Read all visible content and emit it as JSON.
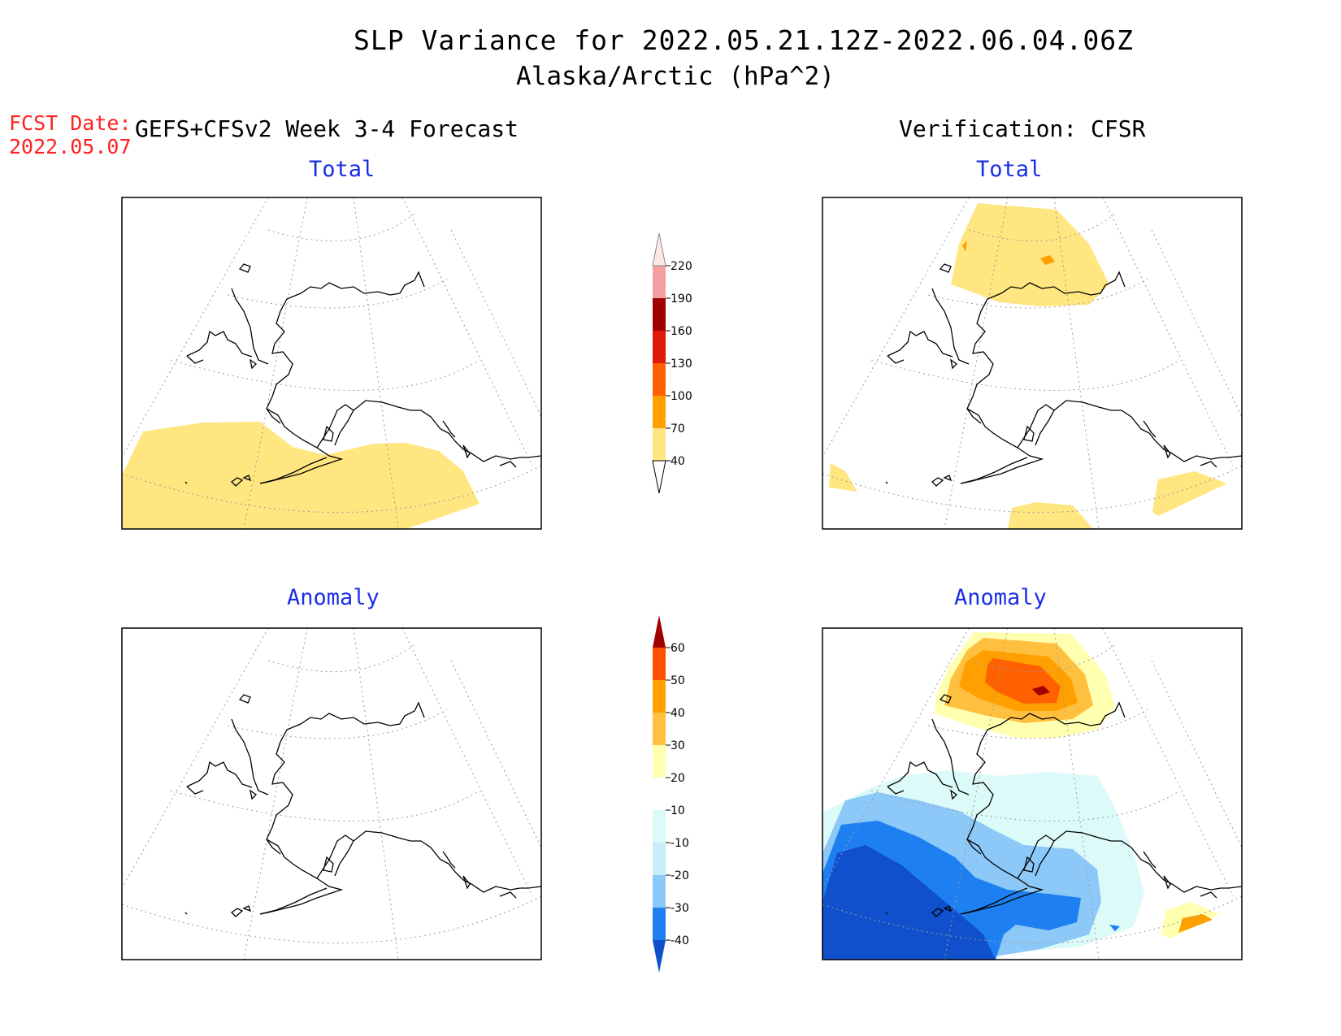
{
  "title": "SLP Variance for 2022.05.21.12Z-2022.06.04.06Z",
  "subtitle": "Alaska/Arctic (hPa^2)",
  "forecast_date_label": "FCST Date:",
  "forecast_date": "2022.05.07",
  "left_header": "GEFS+CFSv2 Week 3-4 Forecast",
  "right_header": "Verification: CFSR",
  "panels": {
    "forecast_total": "Total",
    "verification_total": "Total",
    "forecast_anomaly": "Anomaly",
    "verification_anomaly": "Anomaly"
  },
  "colorbars": {
    "total": {
      "levels": [
        "40",
        "70",
        "100",
        "130",
        "160",
        "190",
        "220"
      ],
      "colors": [
        "#ffe680",
        "#ffa000",
        "#ff6000",
        "#e01808",
        "#a00000",
        "#f4a0a0",
        "#fde8e8"
      ]
    },
    "anomaly": {
      "levels": [
        "-40",
        "-30",
        "-20",
        "-10",
        "10",
        "20",
        "30",
        "40",
        "50",
        "60"
      ],
      "colors": [
        "#1050cc",
        "#1e80f0",
        "#8cc8f8",
        "#c8ecf8",
        "#dcfaf8",
        "#ffffff",
        "#ffffb0",
        "#ffc040",
        "#ffa000",
        "#ff5000",
        "#e01808",
        "#a00000"
      ]
    }
  },
  "colors": {
    "title_red": "#ff2020",
    "subtitle_blue": "#1a2ee6",
    "total_shade": "#ffe680"
  }
}
